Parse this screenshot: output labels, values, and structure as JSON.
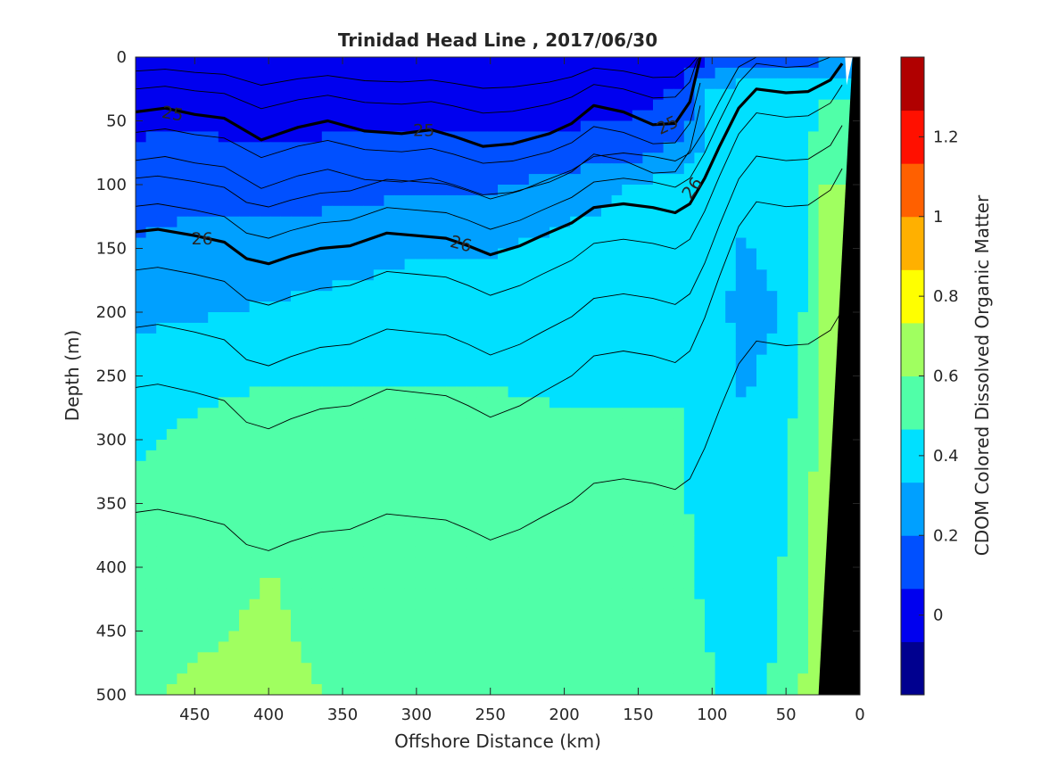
{
  "chart_data": {
    "type": "heatmap",
    "title": "Trinidad Head Line , 2017/06/30",
    "xlabel": "Offshore Distance (km)",
    "ylabel": "Depth (m)",
    "colorbar_label": "CDOM Colored Dissolved Organic Matter",
    "xlim": [
      490,
      0
    ],
    "ylim": [
      0,
      500
    ],
    "clim": [
      -0.2,
      1.4
    ],
    "x_ticks": [
      450,
      400,
      350,
      300,
      250,
      200,
      150,
      100,
      50,
      0
    ],
    "y_ticks": [
      0,
      50,
      100,
      150,
      200,
      250,
      300,
      350,
      400,
      450,
      500
    ],
    "colorbar_ticks": [
      0,
      0.2,
      0.4,
      0.6,
      0.8,
      1,
      1.2
    ],
    "colorbar_levels": [
      "#00008f",
      "#0000ef",
      "#0050ff",
      "#00a0ff",
      "#00e0ff",
      "#50ffa8",
      "#a0ff60",
      "#ffff00",
      "#ffb000",
      "#ff6000",
      "#ff1000",
      "#b00000"
    ],
    "cdom_field": {
      "x": [
        490,
        450,
        400,
        350,
        300,
        250,
        200,
        150,
        120,
        100,
        80,
        60,
        40,
        25
      ],
      "depth": [
        0,
        25,
        50,
        75,
        100,
        150,
        200,
        250,
        300,
        350,
        400,
        450,
        500
      ],
      "values": [
        [
          -0.05,
          -0.05,
          -0.05,
          -0.02,
          -0.02,
          -0.05,
          -0.05,
          -0.02,
          0.0,
          0.05,
          0.05,
          0.05,
          0.1,
          0.15
        ],
        [
          0.0,
          0.0,
          -0.02,
          0.0,
          0.0,
          -0.02,
          0.0,
          0.02,
          0.08,
          0.35,
          0.4,
          0.4,
          0.4,
          0.45
        ],
        [
          0.05,
          0.05,
          0.02,
          0.05,
          0.05,
          0.05,
          0.05,
          0.08,
          0.15,
          0.4,
          0.42,
          0.42,
          0.4,
          0.5
        ],
        [
          0.08,
          0.1,
          0.08,
          0.1,
          0.1,
          0.12,
          0.12,
          0.15,
          0.25,
          0.4,
          0.42,
          0.4,
          0.4,
          0.55
        ],
        [
          0.12,
          0.15,
          0.15,
          0.15,
          0.18,
          0.18,
          0.25,
          0.35,
          0.4,
          0.4,
          0.4,
          0.4,
          0.42,
          0.6
        ],
        [
          0.22,
          0.25,
          0.25,
          0.28,
          0.32,
          0.32,
          0.38,
          0.4,
          0.4,
          0.38,
          0.32,
          0.35,
          0.42,
          0.62
        ],
        [
          0.3,
          0.32,
          0.35,
          0.38,
          0.4,
          0.4,
          0.4,
          0.4,
          0.4,
          0.38,
          0.3,
          0.32,
          0.45,
          0.62
        ],
        [
          0.4,
          0.42,
          0.45,
          0.45,
          0.45,
          0.45,
          0.42,
          0.42,
          0.45,
          0.4,
          0.32,
          0.35,
          0.48,
          0.65
        ],
        [
          0.45,
          0.5,
          0.55,
          0.52,
          0.52,
          0.55,
          0.52,
          0.5,
          0.48,
          0.38,
          0.35,
          0.38,
          0.52,
          0.65
        ],
        [
          0.5,
          0.52,
          0.55,
          0.55,
          0.55,
          0.55,
          0.52,
          0.5,
          0.48,
          0.4,
          0.35,
          0.38,
          0.55,
          0.65
        ],
        [
          0.52,
          0.55,
          0.6,
          0.55,
          0.55,
          0.55,
          0.52,
          0.52,
          0.5,
          0.42,
          0.38,
          0.42,
          0.55,
          0.65
        ],
        [
          0.55,
          0.58,
          0.62,
          0.55,
          0.58,
          0.55,
          0.55,
          0.55,
          0.52,
          0.45,
          0.4,
          0.45,
          0.58,
          0.65
        ],
        [
          0.58,
          0.62,
          0.65,
          0.58,
          0.58,
          0.55,
          0.55,
          0.55,
          0.55,
          0.48,
          0.42,
          0.48,
          0.6,
          0.65
        ]
      ]
    },
    "density_contours": [
      {
        "label": "25",
        "bold": true,
        "x": [
          490,
          470,
          450,
          430,
          405,
          380,
          360,
          335,
          310,
          290,
          275,
          255,
          235,
          210,
          195,
          180,
          160,
          140,
          125,
          115,
          110,
          108
        ],
        "depth": [
          43,
          40,
          45,
          48,
          65,
          55,
          50,
          58,
          60,
          57,
          62,
          70,
          68,
          60,
          52,
          38,
          43,
          53,
          52,
          35,
          10,
          0
        ]
      },
      {
        "label": "26",
        "bold": true,
        "x": [
          490,
          475,
          450,
          430,
          415,
          400,
          385,
          365,
          345,
          320,
          300,
          280,
          265,
          250,
          230,
          215,
          195,
          180,
          160,
          140,
          125,
          115,
          105,
          95,
          82,
          70,
          50,
          35,
          20,
          12
        ],
        "depth": [
          137,
          135,
          140,
          145,
          158,
          162,
          156,
          150,
          148,
          138,
          140,
          142,
          148,
          155,
          148,
          140,
          130,
          118,
          115,
          118,
          122,
          115,
          95,
          70,
          40,
          25,
          28,
          27,
          18,
          5
        ]
      }
    ],
    "annotations": [
      "25",
      "25",
      "25",
      "26",
      "26",
      "26"
    ],
    "land_mask": "black"
  }
}
